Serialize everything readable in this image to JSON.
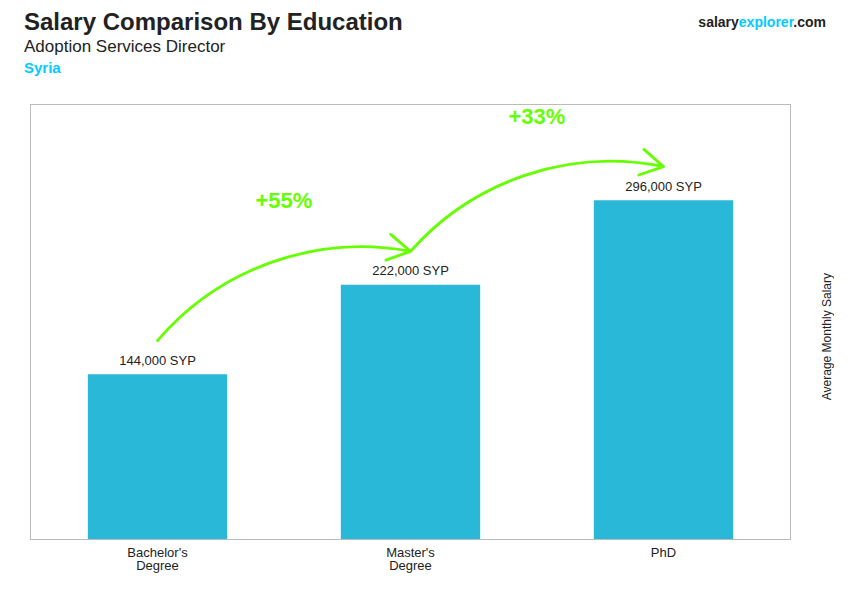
{
  "chart_data": {
    "type": "bar",
    "title": "Salary Comparison By Education",
    "subtitle": "Adoption Services Director",
    "ylabel": "Average Monthly Salary",
    "categories": [
      "Bachelor's\nDegree",
      "Master's\nDegree",
      "PhD"
    ],
    "values": [
      144000,
      222000,
      296000
    ],
    "value_labels": [
      "144,000 SYP",
      "222,000 SYP",
      "296,000 SYP"
    ],
    "data_labels": true,
    "color": "#29b8d8",
    "ylim": [
      0,
      380000
    ],
    "tick_labels": "x",
    "grid": false,
    "annotations": [
      {
        "text": "Syria",
        "color": "#00ccff"
      },
      {
        "parts": [
          {
            "text": "salary"
          },
          {
            "text": "explorer",
            "color": "#00ccff"
          },
          {
            "text": ".com"
          }
        ]
      },
      {
        "text": "+55%",
        "color": "#66ff00",
        "from": "Bachelor's\nDegree",
        "to": "Master's\nDegree"
      },
      {
        "text": "+33%",
        "color": "#66ff00",
        "from": "Master's\nDegree",
        "to": "PhD"
      }
    ]
  }
}
